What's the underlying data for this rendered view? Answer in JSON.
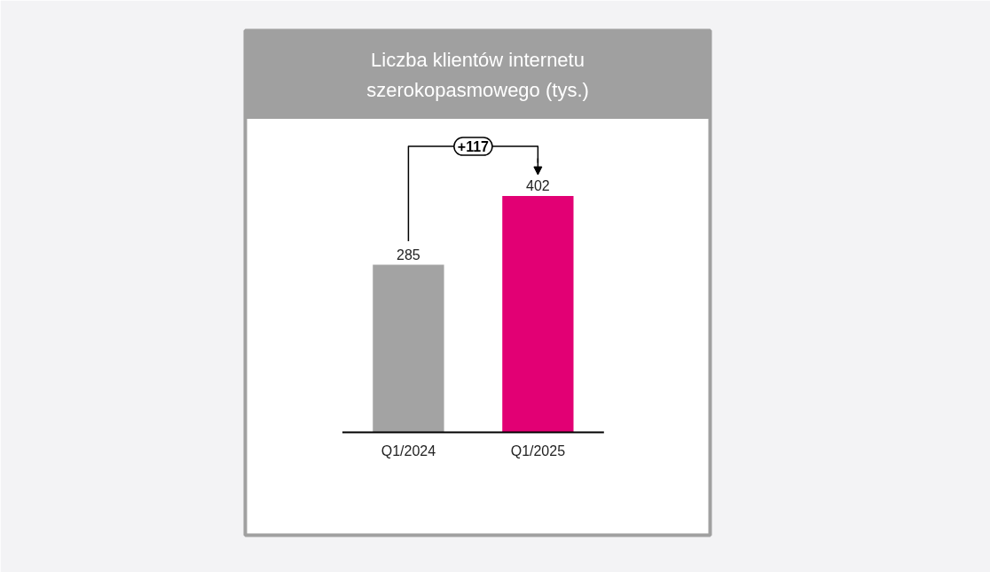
{
  "chart_data": {
    "type": "bar",
    "title": "Liczba klientów internetu szerokopasmowego (tys.)",
    "categories": [
      "Q1/2024",
      "Q1/2025"
    ],
    "values": [
      285,
      402
    ],
    "colors": [
      "#a3a3a3",
      "#e20074"
    ],
    "data_labels": true,
    "annotations": [
      "+117"
    ],
    "grid": false
  }
}
